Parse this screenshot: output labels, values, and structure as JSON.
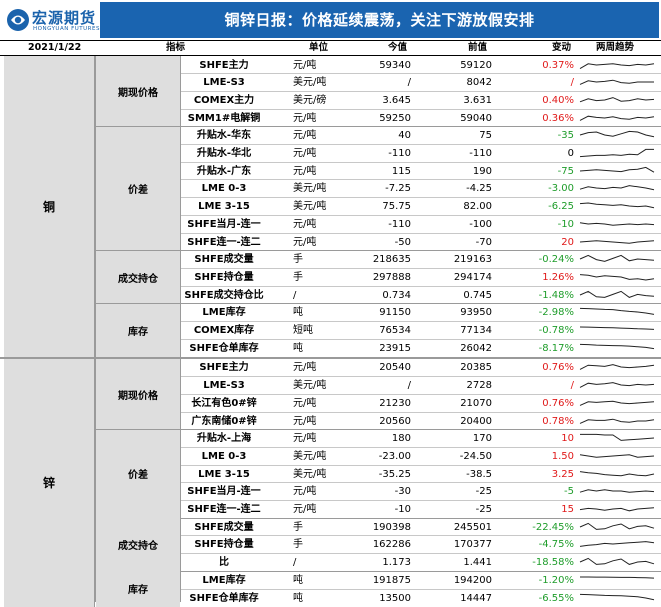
{
  "header": {
    "logo_cn": "宏源期货",
    "logo_en": "HONGYUAN FUTURES",
    "title": "铜锌日报：价格延续震荡，关注下游放假安排"
  },
  "columns": {
    "date": "2021/1/22",
    "indicator": "指标",
    "unit": "单位",
    "current": "今值",
    "previous": "前值",
    "change": "变动",
    "trend": "两周趋势"
  },
  "colors": {
    "title_bg": "#1a64b0",
    "side_bg": "#dedede",
    "up": "#e01a1a",
    "down": "#1f9d2b"
  },
  "sections": [
    {
      "name": "铜",
      "groups": [
        {
          "name": "期现价格",
          "rows": [
            {
              "name": "SHFE主力",
              "unit": "元/吨",
              "current": "59340",
              "previous": "59120",
              "change": "0.37%",
              "dir": "up",
              "trend": [
                0.2,
                0.6,
                0.5,
                0.55,
                0.6,
                0.5,
                0.45,
                0.55,
                0.5,
                0.6
              ]
            },
            {
              "name": "LME-S3",
              "unit": "美元/吨",
              "current": "/",
              "previous": "8042",
              "change": "/",
              "dir": "up",
              "trend": [
                0.3,
                0.6,
                0.5,
                0.55,
                0.65,
                0.45,
                0.4,
                0.5,
                0.5,
                0.5
              ]
            },
            {
              "name": "COMEX主力",
              "unit": "美元/磅",
              "current": "3.645",
              "previous": "3.631",
              "change": "0.40%",
              "dir": "up",
              "trend": [
                0.35,
                0.6,
                0.45,
                0.5,
                0.7,
                0.4,
                0.45,
                0.6,
                0.5,
                0.55
              ]
            },
            {
              "name": "SMM1#电解铜",
              "unit": "元/吨",
              "current": "59250",
              "previous": "59040",
              "change": "0.36%",
              "dir": "up",
              "trend": [
                0.3,
                0.65,
                0.55,
                0.5,
                0.6,
                0.45,
                0.4,
                0.55,
                0.5,
                0.6
              ]
            }
          ]
        },
        {
          "name": "价差",
          "rows": [
            {
              "name": "升贴水-华东",
              "unit": "元/吨",
              "current": "40",
              "previous": "75",
              "change": "-35",
              "dir": "down",
              "trend": [
                0.5,
                0.7,
                0.75,
                0.5,
                0.4,
                0.6,
                0.8,
                0.75,
                0.5,
                0.35
              ]
            },
            {
              "name": "升贴水-华北",
              "unit": "元/吨",
              "current": "-110",
              "previous": "-110",
              "change": "0",
              "dir": "neutral",
              "trend": [
                0.2,
                0.25,
                0.3,
                0.3,
                0.35,
                0.3,
                0.4,
                0.35,
                0.8,
                0.8
              ]
            },
            {
              "name": "升贴水-广东",
              "unit": "元/吨",
              "current": "115",
              "previous": "190",
              "change": "-75",
              "dir": "down",
              "trend": [
                0.5,
                0.55,
                0.6,
                0.55,
                0.5,
                0.45,
                0.6,
                0.65,
                0.8,
                0.4
              ]
            },
            {
              "name": "LME 0-3",
              "unit": "美元/吨",
              "current": "-7.25",
              "previous": "-4.25",
              "change": "-3.00",
              "dir": "down",
              "trend": [
                0.4,
                0.6,
                0.5,
                0.45,
                0.55,
                0.5,
                0.7,
                0.6,
                0.5,
                0.35
              ]
            },
            {
              "name": "LME 3-15",
              "unit": "美元/吨",
              "current": "75.75",
              "previous": "82.00",
              "change": "-6.25",
              "dir": "down",
              "trend": [
                0.7,
                0.75,
                0.65,
                0.6,
                0.55,
                0.6,
                0.5,
                0.45,
                0.5,
                0.35
              ]
            },
            {
              "name": "SHFE当月-连一",
              "unit": "元/吨",
              "current": "-110",
              "previous": "-100",
              "change": "-10",
              "dir": "down",
              "trend": [
                0.6,
                0.5,
                0.55,
                0.5,
                0.4,
                0.45,
                0.5,
                0.45,
                0.5,
                0.45
              ]
            },
            {
              "name": "SHFE连一-连二",
              "unit": "元/吨",
              "current": "-50",
              "previous": "-70",
              "change": "20",
              "dir": "up",
              "trend": [
                0.5,
                0.55,
                0.6,
                0.55,
                0.5,
                0.45,
                0.4,
                0.5,
                0.55,
                0.6
              ]
            }
          ]
        },
        {
          "name": "成交持仓",
          "rows": [
            {
              "name": "SHFE成交量",
              "unit": "手",
              "current": "218635",
              "previous": "219163",
              "change": "-0.24%",
              "dir": "down",
              "trend": [
                0.5,
                0.8,
                0.45,
                0.3,
                0.55,
                0.8,
                0.35,
                0.5,
                0.45,
                0.4
              ]
            },
            {
              "name": "SHFE持仓量",
              "unit": "手",
              "current": "297888",
              "previous": "294174",
              "change": "1.26%",
              "dir": "up",
              "trend": [
                0.7,
                0.65,
                0.5,
                0.6,
                0.55,
                0.5,
                0.3,
                0.35,
                0.25,
                0.35
              ]
            },
            {
              "name": "SHFE成交持仓比",
              "unit": "/",
              "current": "0.734",
              "previous": "0.745",
              "change": "-1.48%",
              "dir": "down",
              "trend": [
                0.5,
                0.8,
                0.35,
                0.3,
                0.55,
                0.8,
                0.3,
                0.55,
                0.45,
                0.4
              ]
            }
          ]
        },
        {
          "name": "库存",
          "rows": [
            {
              "name": "LME库存",
              "unit": "吨",
              "current": "91150",
              "previous": "93950",
              "change": "-2.98%",
              "dir": "down",
              "trend": [
                0.8,
                0.78,
                0.75,
                0.72,
                0.7,
                0.62,
                0.55,
                0.5,
                0.42,
                0.3
              ]
            },
            {
              "name": "COMEX库存",
              "unit": "短吨",
              "current": "76534",
              "previous": "77134",
              "change": "-0.78%",
              "dir": "down",
              "trend": [
                0.75,
                0.74,
                0.72,
                0.7,
                0.68,
                0.66,
                0.63,
                0.6,
                0.58,
                0.55
              ]
            },
            {
              "name": "SHFE仓单库存",
              "unit": "吨",
              "current": "23915",
              "previous": "26042",
              "change": "-8.17%",
              "dir": "down",
              "trend": [
                0.8,
                0.78,
                0.74,
                0.72,
                0.7,
                0.68,
                0.66,
                0.6,
                0.55,
                0.45
              ]
            }
          ]
        }
      ]
    },
    {
      "name": "锌",
      "groups": [
        {
          "name": "期现价格",
          "rows": [
            {
              "name": "SHFE主力",
              "unit": "元/吨",
              "current": "20540",
              "previous": "20385",
              "change": "0.76%",
              "dir": "up",
              "trend": [
                0.3,
                0.65,
                0.6,
                0.55,
                0.7,
                0.5,
                0.45,
                0.5,
                0.55,
                0.65
              ]
            },
            {
              "name": "LME-S3",
              "unit": "美元/吨",
              "current": "/",
              "previous": "2728",
              "change": "/",
              "dir": "up",
              "trend": [
                0.3,
                0.65,
                0.55,
                0.6,
                0.7,
                0.5,
                0.45,
                0.55,
                0.5,
                0.55
              ]
            },
            {
              "name": "长江有色0#锌",
              "unit": "元/吨",
              "current": "21230",
              "previous": "21070",
              "change": "0.76%",
              "dir": "up",
              "trend": [
                0.3,
                0.6,
                0.55,
                0.6,
                0.65,
                0.5,
                0.45,
                0.5,
                0.55,
                0.6
              ]
            },
            {
              "name": "广东南储0#锌",
              "unit": "元/吨",
              "current": "20560",
              "previous": "20400",
              "change": "0.78%",
              "dir": "up",
              "trend": [
                0.3,
                0.6,
                0.55,
                0.55,
                0.65,
                0.45,
                0.4,
                0.5,
                0.5,
                0.6
              ]
            }
          ]
        },
        {
          "name": "价差",
          "rows": [
            {
              "name": "升贴水-上海",
              "unit": "元/吨",
              "current": "180",
              "previous": "170",
              "change": "10",
              "dir": "up",
              "trend": [
                0.8,
                0.8,
                0.8,
                0.75,
                0.75,
                0.3,
                0.35,
                0.4,
                0.45,
                0.5
              ]
            },
            {
              "name": "LME 0-3",
              "unit": "美元/吨",
              "current": "-23.00",
              "previous": "-24.50",
              "change": "1.50",
              "dir": "up",
              "trend": [
                0.6,
                0.5,
                0.4,
                0.45,
                0.5,
                0.55,
                0.6,
                0.4,
                0.45,
                0.5
              ]
            },
            {
              "name": "LME 3-15",
              "unit": "美元/吨",
              "current": "-35.25",
              "previous": "-38.5",
              "change": "3.25",
              "dir": "up",
              "trend": [
                0.7,
                0.6,
                0.55,
                0.45,
                0.4,
                0.35,
                0.5,
                0.4,
                0.35,
                0.5
              ]
            },
            {
              "name": "SHFE当月-连一",
              "unit": "元/吨",
              "current": "-30",
              "previous": "-25",
              "change": "-5",
              "dir": "down",
              "trend": [
                0.4,
                0.6,
                0.5,
                0.6,
                0.5,
                0.5,
                0.4,
                0.45,
                0.5,
                0.45
              ]
            },
            {
              "name": "SHFE连一-连二",
              "unit": "元/吨",
              "current": "-10",
              "previous": "-25",
              "change": "15",
              "dir": "up",
              "trend": [
                0.45,
                0.55,
                0.5,
                0.4,
                0.5,
                0.55,
                0.35,
                0.5,
                0.55,
                0.6
              ]
            }
          ]
        },
        {
          "name": "成交持仓",
          "rows": [
            {
              "name": "SHFE成交量",
              "unit": "手",
              "current": "190398",
              "previous": "245501",
              "change": "-22.45%",
              "dir": "down",
              "trend": [
                0.5,
                0.8,
                0.3,
                0.35,
                0.6,
                0.75,
                0.35,
                0.55,
                0.6,
                0.4
              ]
            },
            {
              "name": "SHFE持仓量",
              "unit": "手",
              "current": "162286",
              "previous": "170377",
              "change": "-4.75%",
              "dir": "down",
              "trend": [
                0.3,
                0.4,
                0.45,
                0.55,
                0.5,
                0.55,
                0.6,
                0.65,
                0.7,
                0.6
              ]
            },
            {
              "name": "比",
              "unit": "/",
              "current": "1.173",
              "previous": "1.441",
              "change": "-18.58%",
              "dir": "down",
              "trend": [
                0.5,
                0.8,
                0.3,
                0.35,
                0.6,
                0.75,
                0.3,
                0.5,
                0.55,
                0.35
              ]
            }
          ]
        },
        {
          "name": "库存",
          "rows": [
            {
              "name": "LME库存",
              "unit": "吨",
              "current": "191875",
              "previous": "194200",
              "change": "-1.20%",
              "dir": "down",
              "trend": [
                0.75,
                0.75,
                0.74,
                0.74,
                0.73,
                0.72,
                0.72,
                0.7,
                0.68,
                0.66
              ]
            },
            {
              "name": "SHFE仓单库存",
              "unit": "吨",
              "current": "13500",
              "previous": "14447",
              "change": "-6.55%",
              "dir": "down",
              "trend": [
                0.8,
                0.78,
                0.75,
                0.72,
                0.7,
                0.68,
                0.65,
                0.6,
                0.5,
                0.35
              ]
            }
          ]
        }
      ]
    }
  ]
}
